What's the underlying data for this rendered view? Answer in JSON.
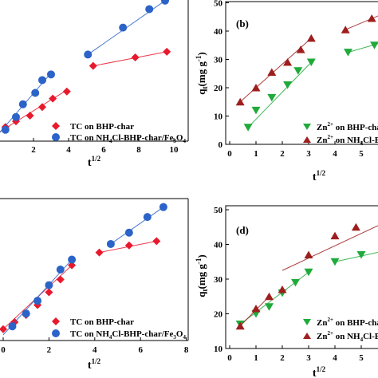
{
  "chart_data": [
    {
      "type": "scatter",
      "panel": "a (cropped)",
      "xlabel": "t1/2",
      "ylabel": "",
      "xlim": [
        0,
        10
      ],
      "xticks": [
        2,
        4,
        6,
        8,
        10
      ],
      "ylim": [
        0,
        100
      ],
      "legend": [
        "TC on BHP-char",
        "TC on NH4Cl-BHP-char/Fe3O4"
      ],
      "legend_position": "bottom-center",
      "series": [
        {
          "name": "TC on BHP-char",
          "color": "#e8192c",
          "marker": "diamond",
          "x": [
            0.4,
            1.0,
            1.8,
            2.5,
            3.1,
            3.9,
            5.4,
            7.8,
            9.6
          ],
          "y": [
            10,
            14,
            18,
            24,
            30,
            35,
            53,
            59,
            63
          ],
          "fit": [
            [
              [
                0.0,
                6
              ],
              [
                3.9,
                36
              ]
            ],
            [
              [
                5.4,
                53
              ],
              [
                9.6,
                63
              ]
            ]
          ]
        },
        {
          "name": "TC on NH4Cl-BHP-char/Fe3O4",
          "color": "#2b63c8",
          "marker": "circle",
          "x": [
            0.4,
            1.0,
            1.4,
            2.1,
            2.5,
            3.0,
            5.1,
            7.1,
            8.6,
            9.5
          ],
          "y": [
            8,
            17,
            26,
            34,
            43,
            47,
            61,
            80,
            93,
            99
          ],
          "fit": [
            [
              [
                0.0,
                5
              ],
              [
                3.0,
                48
              ]
            ],
            [
              [
                5.1,
                61
              ],
              [
                9.5,
                99
              ]
            ]
          ]
        }
      ]
    },
    {
      "type": "scatter",
      "panel": "(b)",
      "xlabel": "t1/2",
      "ylabel": "qt(mg g-1)",
      "xlim": [
        0,
        5.8
      ],
      "xticks": [
        0,
        1,
        2,
        3,
        4,
        5
      ],
      "ylim": [
        0,
        50
      ],
      "yticks": [
        0,
        10,
        20,
        30,
        40,
        50
      ],
      "legend": [
        "Zn2+ on BHP-char",
        "Zn2+ on NH4Cl-BHP-char/Fe3O4"
      ],
      "legend_position": "bottom-right",
      "series": [
        {
          "name": "Zn2+ on BHP-char",
          "color": "#1faa3a",
          "marker": "triangle-down",
          "x": [
            0.7,
            1.0,
            1.6,
            2.2,
            2.6,
            3.1,
            4.5,
            5.5
          ],
          "y": [
            6,
            12,
            16.5,
            21,
            26,
            29,
            32.5,
            35
          ],
          "fit": [
            [
              [
                0.7,
                6
              ],
              [
                3.1,
                29
              ]
            ],
            [
              [
                4.5,
                32.5
              ],
              [
                5.8,
                36
              ]
            ]
          ]
        },
        {
          "name": "Zn2+ on NH4Cl-BHP-char/Fe3O4",
          "color": "#9e1e1e",
          "marker": "triangle-up",
          "x": [
            0.4,
            1.0,
            1.6,
            2.2,
            2.7,
            3.1,
            4.4,
            5.4
          ],
          "y": [
            15,
            20,
            25.5,
            29,
            33.5,
            37.5,
            40.5,
            44.5
          ],
          "fit": [
            [
              [
                0.4,
                15
              ],
              [
                3.1,
                37.5
              ]
            ],
            [
              [
                4.4,
                40.5
              ],
              [
                5.8,
                46
              ]
            ]
          ]
        }
      ]
    },
    {
      "type": "scatter",
      "panel": "c (cropped)",
      "xlabel": "t1/2",
      "ylabel": "",
      "xlim": [
        0,
        8
      ],
      "xticks": [
        0,
        2,
        4,
        6,
        8
      ],
      "ylim": [
        0,
        100
      ],
      "legend": [
        "TC on BHP-char",
        "TC on NH4Cl-BHP-char/Fe3O4"
      ],
      "legend_position": "bottom-center",
      "series": [
        {
          "name": "TC on BHP-char",
          "color": "#e8192c",
          "marker": "diamond",
          "x": [
            0.0,
            0.5,
            1.0,
            1.5,
            2.0,
            2.5,
            3.0,
            4.2,
            5.5,
            6.7
          ],
          "y": [
            8,
            13,
            18,
            25,
            34,
            43,
            53,
            62,
            67,
            70
          ],
          "fit": [
            [
              [
                0.0,
                8
              ],
              [
                3.0,
                53
              ]
            ],
            [
              [
                4.2,
                62
              ],
              [
                6.7,
                70
              ]
            ]
          ]
        },
        {
          "name": "TC on NH4Cl-BHP-char/Fe3O4",
          "color": "#2b63c8",
          "marker": "circle",
          "x": [
            0.4,
            1.0,
            1.5,
            2.0,
            2.5,
            3.0,
            4.7,
            5.5,
            6.3,
            7.0
          ],
          "y": [
            10,
            19,
            28,
            39,
            50,
            57,
            68,
            76,
            87,
            94
          ],
          "fit": [
            [
              [
                0.0,
                4
              ],
              [
                3.0,
                57
              ]
            ],
            [
              [
                4.7,
                68
              ],
              [
                7.0,
                94
              ]
            ]
          ]
        }
      ]
    },
    {
      "type": "scatter",
      "panel": "(d)",
      "xlabel": "t1/2",
      "ylabel": "qt(mg g-1)",
      "xlim": [
        0,
        5.8
      ],
      "xticks": [
        0,
        1,
        2,
        3,
        4,
        5
      ],
      "ylim": [
        10,
        50
      ],
      "yticks": [
        10,
        20,
        30,
        40,
        50
      ],
      "legend": [
        "Zn2+ on BHP-char",
        "Zn2+ on NH4Cl-BHP-char/Fe3O4"
      ],
      "legend_position": "bottom-right",
      "series": [
        {
          "name": "Zn2+ on BHP-char",
          "color": "#1faa3a",
          "marker": "triangle-down",
          "x": [
            0.4,
            1.0,
            1.5,
            2.0,
            2.5,
            3.0,
            4.0,
            5.0
          ],
          "y": [
            17,
            20,
            22,
            26,
            29,
            32,
            35,
            37
          ],
          "fit": [
            [
              [
                0.4,
                17
              ],
              [
                3.0,
                32
              ]
            ],
            [
              [
                4.0,
                35
              ],
              [
                5.8,
                38
              ]
            ]
          ]
        },
        {
          "name": "Zn2+ on NH4Cl-BHP-char/Fe3O4",
          "color": "#9e1e1e",
          "marker": "triangle-up",
          "x": [
            0.4,
            1.0,
            1.5,
            2.0,
            3.0,
            4.0,
            4.8
          ],
          "y": [
            16.5,
            21.5,
            25,
            27,
            37,
            42.5,
            45
          ],
          "fit": [
            [
              [
                0.4,
                16.5
              ],
              [
                1.5,
                25
              ]
            ],
            [
              [
                2.0,
                32.5
              ],
              [
                5.8,
                46
              ]
            ]
          ]
        }
      ]
    }
  ],
  "labels": {
    "panel_b": "(b)",
    "panel_d": "(d)",
    "xlabel_base": "t",
    "xlabel_exp": "1/2",
    "ylabel_q": "q",
    "ylabel_sub": "t",
    "ylabel_open": "(mg g",
    "ylabel_exp": "-1",
    "ylabel_close": ")",
    "tc_bhp": "TC on BHP-char",
    "tc_nh_a": "TC on NH",
    "tc_nh_sub4": "4",
    "tc_nh_b": "Cl-BHP-char/Fe",
    "tc_nh_sub3": "3",
    "tc_nh_c": "O",
    "tc_nh_sub4b": "4",
    "zn_a": "Zn",
    "zn_exp": "2+",
    "zn_bhp_rest": " on BHP-char",
    "zn_nh_rest": " on NH",
    "zn_nh_sub4": "4",
    "zn_nh_tail": "Cl-BHP-"
  }
}
